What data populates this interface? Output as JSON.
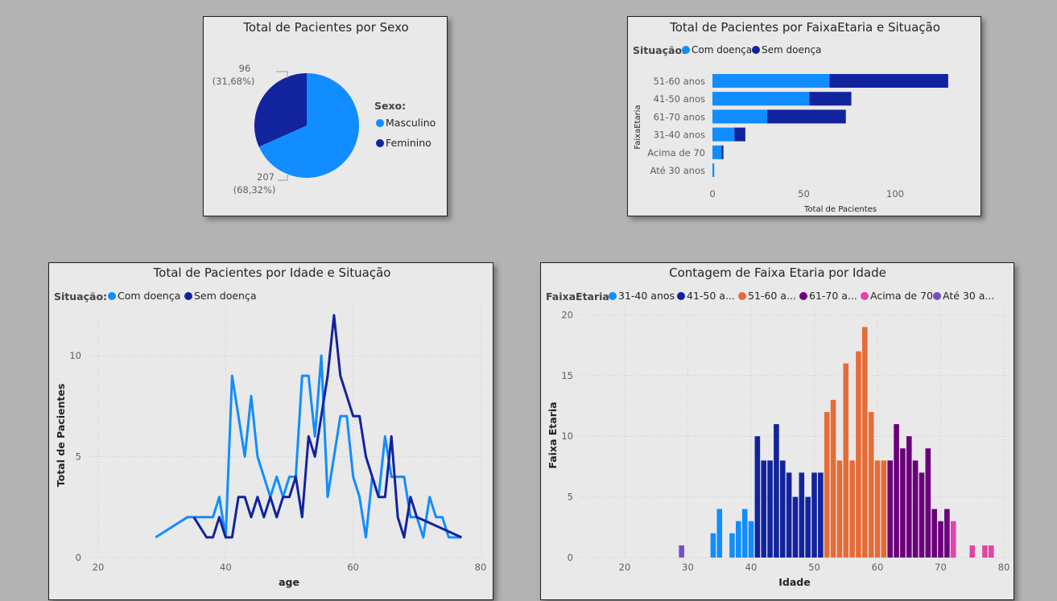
{
  "colors": {
    "com_doenca": "#118DFF",
    "sem_doenca": "#12239E",
    "faixa_31_40": "#118DFF",
    "faixa_41_50": "#12239E",
    "faixa_51_60": "#E66C37",
    "faixa_61_70": "#6B007B",
    "faixa_acima_70": "#E044A7",
    "faixa_ate_30": "#744EC2"
  },
  "chart_data": [
    {
      "type": "pie",
      "title": "Total de Pacientes por Sexo",
      "legend_title": "Sexo:",
      "slices": [
        {
          "name": "Masculino",
          "value": 207,
          "label": "207",
          "pct_label": "(68,32%)"
        },
        {
          "name": "Feminino",
          "value": 96,
          "label": "96",
          "pct_label": "(31,68%)"
        }
      ]
    },
    {
      "type": "bar",
      "orientation": "horizontal",
      "stacked": true,
      "title": "Total de Pacientes por FaixaEtaria e Situação",
      "legend_title": "Situação:",
      "categories": [
        "51-60 anos",
        "41-50 anos",
        "61-70 anos",
        "31-40 anos",
        "Acima de 70",
        "Até 30 anos"
      ],
      "series": [
        {
          "name": "Com doença",
          "values": [
            64,
            53,
            30,
            12,
            5,
            1
          ]
        },
        {
          "name": "Sem doença",
          "values": [
            65,
            23,
            43,
            6,
            1,
            0
          ]
        }
      ],
      "xlabel": "Total de Pacientes",
      "ylabel": "FaixaEtaria",
      "xlim": [
        0,
        130
      ],
      "xticks": [
        "0",
        "50",
        "100"
      ]
    },
    {
      "type": "line",
      "title": "Total de Pacientes por Idade e Situação",
      "legend_title": "Situação:",
      "xlabel": "age",
      "ylabel": "Total de Pacientes",
      "xlim": [
        20,
        80
      ],
      "ylim": [
        0,
        12
      ],
      "xticks": [
        "20",
        "40",
        "60",
        "80"
      ],
      "yticks": [
        "0",
        "5",
        "10"
      ],
      "series": [
        {
          "name": "Com doença",
          "points": [
            [
              29,
              1
            ],
            [
              34,
              2
            ],
            [
              35,
              2
            ],
            [
              37,
              2
            ],
            [
              38,
              2
            ],
            [
              39,
              3
            ],
            [
              40,
              1
            ],
            [
              41,
              9
            ],
            [
              42,
              7
            ],
            [
              43,
              5
            ],
            [
              44,
              8
            ],
            [
              45,
              5
            ],
            [
              46,
              4
            ],
            [
              47,
              3
            ],
            [
              48,
              4
            ],
            [
              49,
              3
            ],
            [
              50,
              4
            ],
            [
              51,
              4
            ],
            [
              52,
              9
            ],
            [
              53,
              9
            ],
            [
              54,
              6
            ],
            [
              55,
              10
            ],
            [
              56,
              3
            ],
            [
              57,
              5
            ],
            [
              58,
              7
            ],
            [
              59,
              7
            ],
            [
              60,
              4
            ],
            [
              61,
              3
            ],
            [
              62,
              1
            ],
            [
              63,
              4
            ],
            [
              64,
              3
            ],
            [
              65,
              6
            ],
            [
              66,
              4
            ],
            [
              67,
              4
            ],
            [
              68,
              4
            ],
            [
              69,
              2
            ],
            [
              70,
              2
            ],
            [
              71,
              1
            ],
            [
              72,
              3
            ],
            [
              73,
              2
            ],
            [
              74,
              2
            ],
            [
              75,
              1
            ],
            [
              76,
              1
            ],
            [
              77,
              1
            ]
          ]
        },
        {
          "name": "Sem doença",
          "points": [
            [
              35,
              2
            ],
            [
              37,
              1
            ],
            [
              38,
              1
            ],
            [
              39,
              2
            ],
            [
              40,
              1
            ],
            [
              41,
              1
            ],
            [
              42,
              3
            ],
            [
              43,
              3
            ],
            [
              44,
              2
            ],
            [
              45,
              3
            ],
            [
              46,
              2
            ],
            [
              47,
              3
            ],
            [
              48,
              2
            ],
            [
              49,
              3
            ],
            [
              50,
              3
            ],
            [
              51,
              4
            ],
            [
              52,
              2
            ],
            [
              53,
              6
            ],
            [
              54,
              5
            ],
            [
              55,
              7
            ],
            [
              56,
              9
            ],
            [
              57,
              12
            ],
            [
              58,
              9
            ],
            [
              59,
              8
            ],
            [
              60,
              7
            ],
            [
              61,
              7
            ],
            [
              62,
              5
            ],
            [
              63,
              4
            ],
            [
              64,
              3
            ],
            [
              65,
              3
            ],
            [
              66,
              6
            ],
            [
              67,
              2
            ],
            [
              68,
              1
            ],
            [
              69,
              3
            ],
            [
              70,
              2
            ],
            [
              77,
              1
            ]
          ]
        }
      ]
    },
    {
      "type": "bar",
      "title": "Contagem de Faixa Etaria por Idade",
      "legend_title": "FaixaEtaria",
      "legend_labels": [
        "31-40 anos",
        "41-50 a...",
        "51-60 a...",
        "61-70 a...",
        "Acima de 70",
        "Até 30 a..."
      ],
      "xlabel": "Idade",
      "ylabel": "Faixa Etaria",
      "xlim": [
        20,
        80
      ],
      "ylim": [
        0,
        20
      ],
      "xticks": [
        "20",
        "30",
        "40",
        "50",
        "60",
        "70",
        "80"
      ],
      "yticks": [
        "0",
        "5",
        "10",
        "15",
        "20"
      ],
      "series": [
        {
          "name": "31-40 anos",
          "x": [
            34,
            35,
            37,
            38,
            39,
            40
          ],
          "values": [
            2,
            4,
            2,
            3,
            4,
            3
          ]
        },
        {
          "name": "41-50 anos",
          "x": [
            41,
            42,
            43,
            44,
            45,
            46,
            47,
            48,
            49,
            50,
            51
          ],
          "values": [
            10,
            8,
            8,
            11,
            8,
            7,
            5,
            7,
            5,
            7,
            7
          ]
        },
        {
          "name": "51-60 anos",
          "x": [
            52,
            53,
            54,
            55,
            56,
            57,
            58,
            59,
            60,
            61
          ],
          "values": [
            12,
            13,
            8,
            16,
            8,
            17,
            19,
            12,
            8,
            8
          ]
        },
        {
          "name": "61-70 anos",
          "x": [
            62,
            63,
            64,
            65,
            66,
            67,
            68,
            69,
            70,
            71
          ],
          "values": [
            8,
            11,
            9,
            10,
            8,
            7,
            9,
            4,
            3,
            4
          ]
        },
        {
          "name": "Acima de 70",
          "x": [
            72,
            75,
            77,
            78
          ],
          "values": [
            3,
            1,
            1,
            1
          ]
        },
        {
          "name": "Até 30 anos",
          "x": [
            29
          ],
          "values": [
            1
          ]
        }
      ]
    }
  ]
}
